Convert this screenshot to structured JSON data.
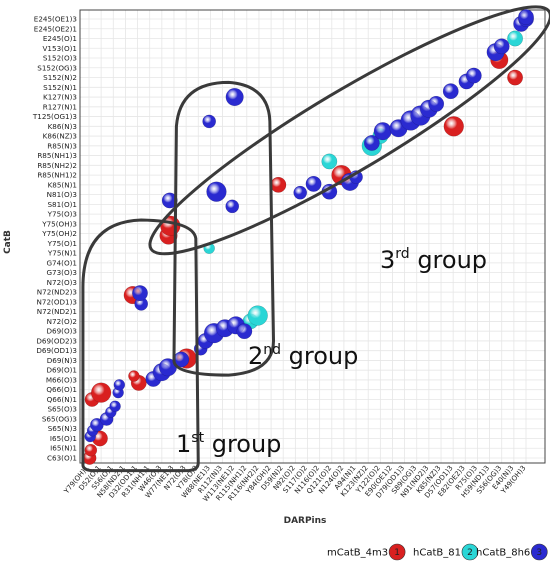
{
  "chart_data": {
    "type": "scatter",
    "xlabel": "DARPins",
    "ylabel": "CatB",
    "y_categories": [
      "C63(O)1",
      "I65(N)1",
      "I65(O)1",
      "S65(N)3",
      "S65(OG)3",
      "S65(O)3",
      "Q66(N)1",
      "Q66(O)1",
      "M66(O)3",
      "D69(O)1",
      "D69(N)3",
      "D69(OD1)3",
      "D69(OD2)3",
      "D69(O)3",
      "N72(O)2",
      "N72(ND2)1",
      "N72(OD1)3",
      "N72(ND2)3",
      "N72(O)3",
      "G73(O)3",
      "G74(O)1",
      "Y75(N)1",
      "Y75(O)1",
      "Y75(OH)2",
      "Y75(OH)3",
      "Y75(O)3",
      "S81(O)1",
      "N81(O)3",
      "K85(N)1",
      "R85(NH1)2",
      "R85(NH2)2",
      "R85(NH1)3",
      "R85(N)3",
      "K86(NZ)3",
      "K86(N)3",
      "T125(OG1)3",
      "R127(N)1",
      "K127(N)3",
      "S152(N)1",
      "S152(N)2",
      "S152(OG)3",
      "S152(O)3",
      "V153(O)1",
      "E245(O)1",
      "E245(OE2)1",
      "E245(OE1)3"
    ],
    "x_categories": [
      "Y79(OH)1",
      "D52(O)1",
      "S56(O)1",
      "N58(ND2)1",
      "D32(OD1)1",
      "R31(NH1)1",
      "W46(O)3",
      "W77(NE1)3",
      "N72(O)3",
      "Y78(O)3",
      "W88(NE1)3",
      "R112(N)3",
      "W113(NE1)2",
      "R115(NH1)2",
      "R116(NH2)2",
      "Y84(OH)2",
      "D59(N)2",
      "N92(O)2",
      "S117(O)2",
      "N116(O)2",
      "Q121(O)2",
      "N124(O)2",
      "A94(N)1",
      "K123(NZ)2",
      "Y122(O)2",
      "E90(OE1)2",
      "D79(OD1)3",
      "S89(OG)3",
      "N91(ND2)3",
      "K85(NZ)3",
      "D57(OD1)3",
      "E82(OE2)3",
      "R75(O)3",
      "H59(ND1)3",
      "S56(OG)3",
      "E40(N)3",
      "Y49(OH)3"
    ],
    "y_values_are_category_indices": true,
    "series": [
      {
        "name": "mCatB_4m3",
        "marker": "1",
        "color": "#d92020",
        "points": [
          {
            "x": 0.05,
            "y": 0.0,
            "size": 12
          },
          {
            "x": 0.15,
            "y": 0.8,
            "size": 11
          },
          {
            "x": 0.9,
            "y": 2.0,
            "size": 14
          },
          {
            "x": 0.25,
            "y": 6.0,
            "size": 13
          },
          {
            "x": 1.0,
            "y": 6.7,
            "size": 18
          },
          {
            "x": 4.1,
            "y": 7.7,
            "size": 14
          },
          {
            "x": 3.7,
            "y": 8.4,
            "size": 10
          },
          {
            "x": 8.05,
            "y": 10.2,
            "size": 18
          },
          {
            "x": 6.55,
            "y": 22.8,
            "size": 16
          },
          {
            "x": 6.7,
            "y": 23.8,
            "size": 18
          },
          {
            "x": 15.6,
            "y": 28.0,
            "size": 14
          },
          {
            "x": 20.8,
            "y": 29.0,
            "size": 18
          },
          {
            "x": 30.05,
            "y": 34.0,
            "size": 18
          },
          {
            "x": 35.1,
            "y": 39.0,
            "size": 14
          },
          {
            "x": 33.8,
            "y": 40.8,
            "size": 16
          },
          {
            "x": 3.6,
            "y": 16.7,
            "size": 16
          }
        ]
      },
      {
        "name": "hCatB_81",
        "marker": "2",
        "color": "#2ad6d6",
        "points": [
          {
            "x": 23.3,
            "y": 32.0,
            "size": 18
          },
          {
            "x": 24.0,
            "y": 33.0,
            "size": 14
          },
          {
            "x": 13.3,
            "y": 14.0,
            "size": 14
          },
          {
            "x": 13.9,
            "y": 14.6,
            "size": 18
          },
          {
            "x": 19.8,
            "y": 30.4,
            "size": 14
          },
          {
            "x": 35.1,
            "y": 43.0,
            "size": 14
          },
          {
            "x": 9.9,
            "y": 21.5,
            "size": 10
          }
        ]
      },
      {
        "name": "hCatB_8h6",
        "marker": "3",
        "color": "#2a2ad0",
        "points": [
          {
            "x": 0.1,
            "y": 2.2,
            "size": 10
          },
          {
            "x": 0.3,
            "y": 2.8,
            "size": 10
          },
          {
            "x": 0.65,
            "y": 3.4,
            "size": 12
          },
          {
            "x": 1.45,
            "y": 4.0,
            "size": 12
          },
          {
            "x": 1.8,
            "y": 4.7,
            "size": 10
          },
          {
            "x": 2.15,
            "y": 5.3,
            "size": 10
          },
          {
            "x": 2.4,
            "y": 6.7,
            "size": 10
          },
          {
            "x": 2.5,
            "y": 7.5,
            "size": 10
          },
          {
            "x": 5.3,
            "y": 8.1,
            "size": 14
          },
          {
            "x": 6.0,
            "y": 8.8,
            "size": 16
          },
          {
            "x": 6.5,
            "y": 9.3,
            "size": 16
          },
          {
            "x": 7.6,
            "y": 10.1,
            "size": 14
          },
          {
            "x": 9.2,
            "y": 11.2,
            "size": 12
          },
          {
            "x": 9.6,
            "y": 12.0,
            "size": 14
          },
          {
            "x": 10.3,
            "y": 12.8,
            "size": 18
          },
          {
            "x": 11.2,
            "y": 13.3,
            "size": 16
          },
          {
            "x": 12.1,
            "y": 13.6,
            "size": 16
          },
          {
            "x": 12.8,
            "y": 13.0,
            "size": 14
          },
          {
            "x": 4.3,
            "y": 15.8,
            "size": 12
          },
          {
            "x": 4.2,
            "y": 16.9,
            "size": 14
          },
          {
            "x": 6.65,
            "y": 26.4,
            "size": 14
          },
          {
            "x": 10.5,
            "y": 27.3,
            "size": 18
          },
          {
            "x": 11.8,
            "y": 25.8,
            "size": 12
          },
          {
            "x": 12.0,
            "y": 37.0,
            "size": 16
          },
          {
            "x": 17.4,
            "y": 27.2,
            "size": 12
          },
          {
            "x": 18.5,
            "y": 28.1,
            "size": 14
          },
          {
            "x": 21.5,
            "y": 28.3,
            "size": 16
          },
          {
            "x": 19.8,
            "y": 27.3,
            "size": 14
          },
          {
            "x": 22.0,
            "y": 28.8,
            "size": 12
          },
          {
            "x": 23.3,
            "y": 32.3,
            "size": 14
          },
          {
            "x": 24.2,
            "y": 33.5,
            "size": 16
          },
          {
            "x": 25.5,
            "y": 33.8,
            "size": 16
          },
          {
            "x": 26.5,
            "y": 34.6,
            "size": 18
          },
          {
            "x": 27.3,
            "y": 35.1,
            "size": 18
          },
          {
            "x": 28.0,
            "y": 35.8,
            "size": 16
          },
          {
            "x": 28.6,
            "y": 36.3,
            "size": 14
          },
          {
            "x": 29.8,
            "y": 37.6,
            "size": 14
          },
          {
            "x": 31.1,
            "y": 38.6,
            "size": 14
          },
          {
            "x": 31.7,
            "y": 39.2,
            "size": 14
          },
          {
            "x": 33.5,
            "y": 41.6,
            "size": 16
          },
          {
            "x": 34.0,
            "y": 42.2,
            "size": 14
          },
          {
            "x": 35.6,
            "y": 44.5,
            "size": 14
          },
          {
            "x": 36.0,
            "y": 45.0,
            "size": 14
          },
          {
            "x": 9.9,
            "y": 34.5,
            "size": 12
          },
          {
            "x": 36.0,
            "y": 45.2,
            "size": 14
          }
        ]
      }
    ],
    "annotations": [
      {
        "label": "1",
        "sup": "st",
        "rest": " group"
      },
      {
        "label": "2",
        "sup": "nd",
        "rest": " group"
      },
      {
        "label": "3",
        "sup": "rd",
        "rest": " group"
      }
    ],
    "grid": true,
    "legend_position": "bottom-right"
  }
}
